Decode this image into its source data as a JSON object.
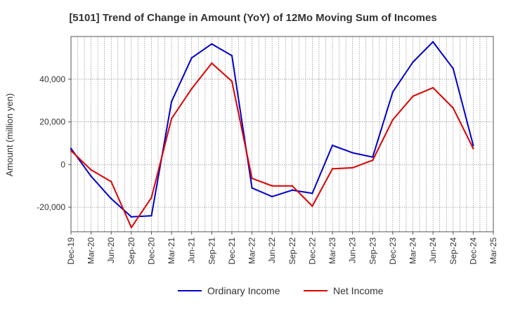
{
  "chart_data": {
    "type": "line",
    "title": "[5101]  Trend of Change in Amount (YoY) of 12Mo Moving Sum of Incomes",
    "ylabel": "Amount (million yen)",
    "xlabel": "",
    "categories": [
      "Dec-19",
      "Mar-20",
      "Jun-20",
      "Sep-20",
      "Dec-20",
      "Mar-21",
      "Jun-21",
      "Sep-21",
      "Dec-21",
      "Mar-22",
      "Jun-22",
      "Sep-22",
      "Dec-22",
      "Mar-23",
      "Jun-23",
      "Sep-23",
      "Dec-23",
      "Mar-24",
      "Jun-24",
      "Sep-24",
      "Dec-24",
      "Mar-25"
    ],
    "ylim": [
      -31500,
      60000
    ],
    "yticks": [
      -20000,
      0,
      20000,
      40000
    ],
    "ytick_labels": [
      "-20,000",
      "0",
      "20,000",
      "40,000"
    ],
    "grid": true,
    "legend_position": "bottom-center",
    "series": [
      {
        "name": "Ordinary Income",
        "color": "#0000cc",
        "values": [
          7500,
          -5500,
          -16000,
          -24500,
          -24000,
          29500,
          50000,
          56500,
          51000,
          -11000,
          -15000,
          -12000,
          -13500,
          9000,
          5500,
          3500,
          34000,
          48000,
          57500,
          45000,
          9000,
          null
        ]
      },
      {
        "name": "Net Income",
        "color": "#dd0000",
        "values": [
          6500,
          -2500,
          -8000,
          -29500,
          -15500,
          21500,
          35500,
          47500,
          39000,
          -6500,
          -10000,
          -10000,
          -19500,
          -2000,
          -1500,
          2000,
          21000,
          32000,
          36000,
          26500,
          7500,
          null
        ]
      }
    ]
  }
}
